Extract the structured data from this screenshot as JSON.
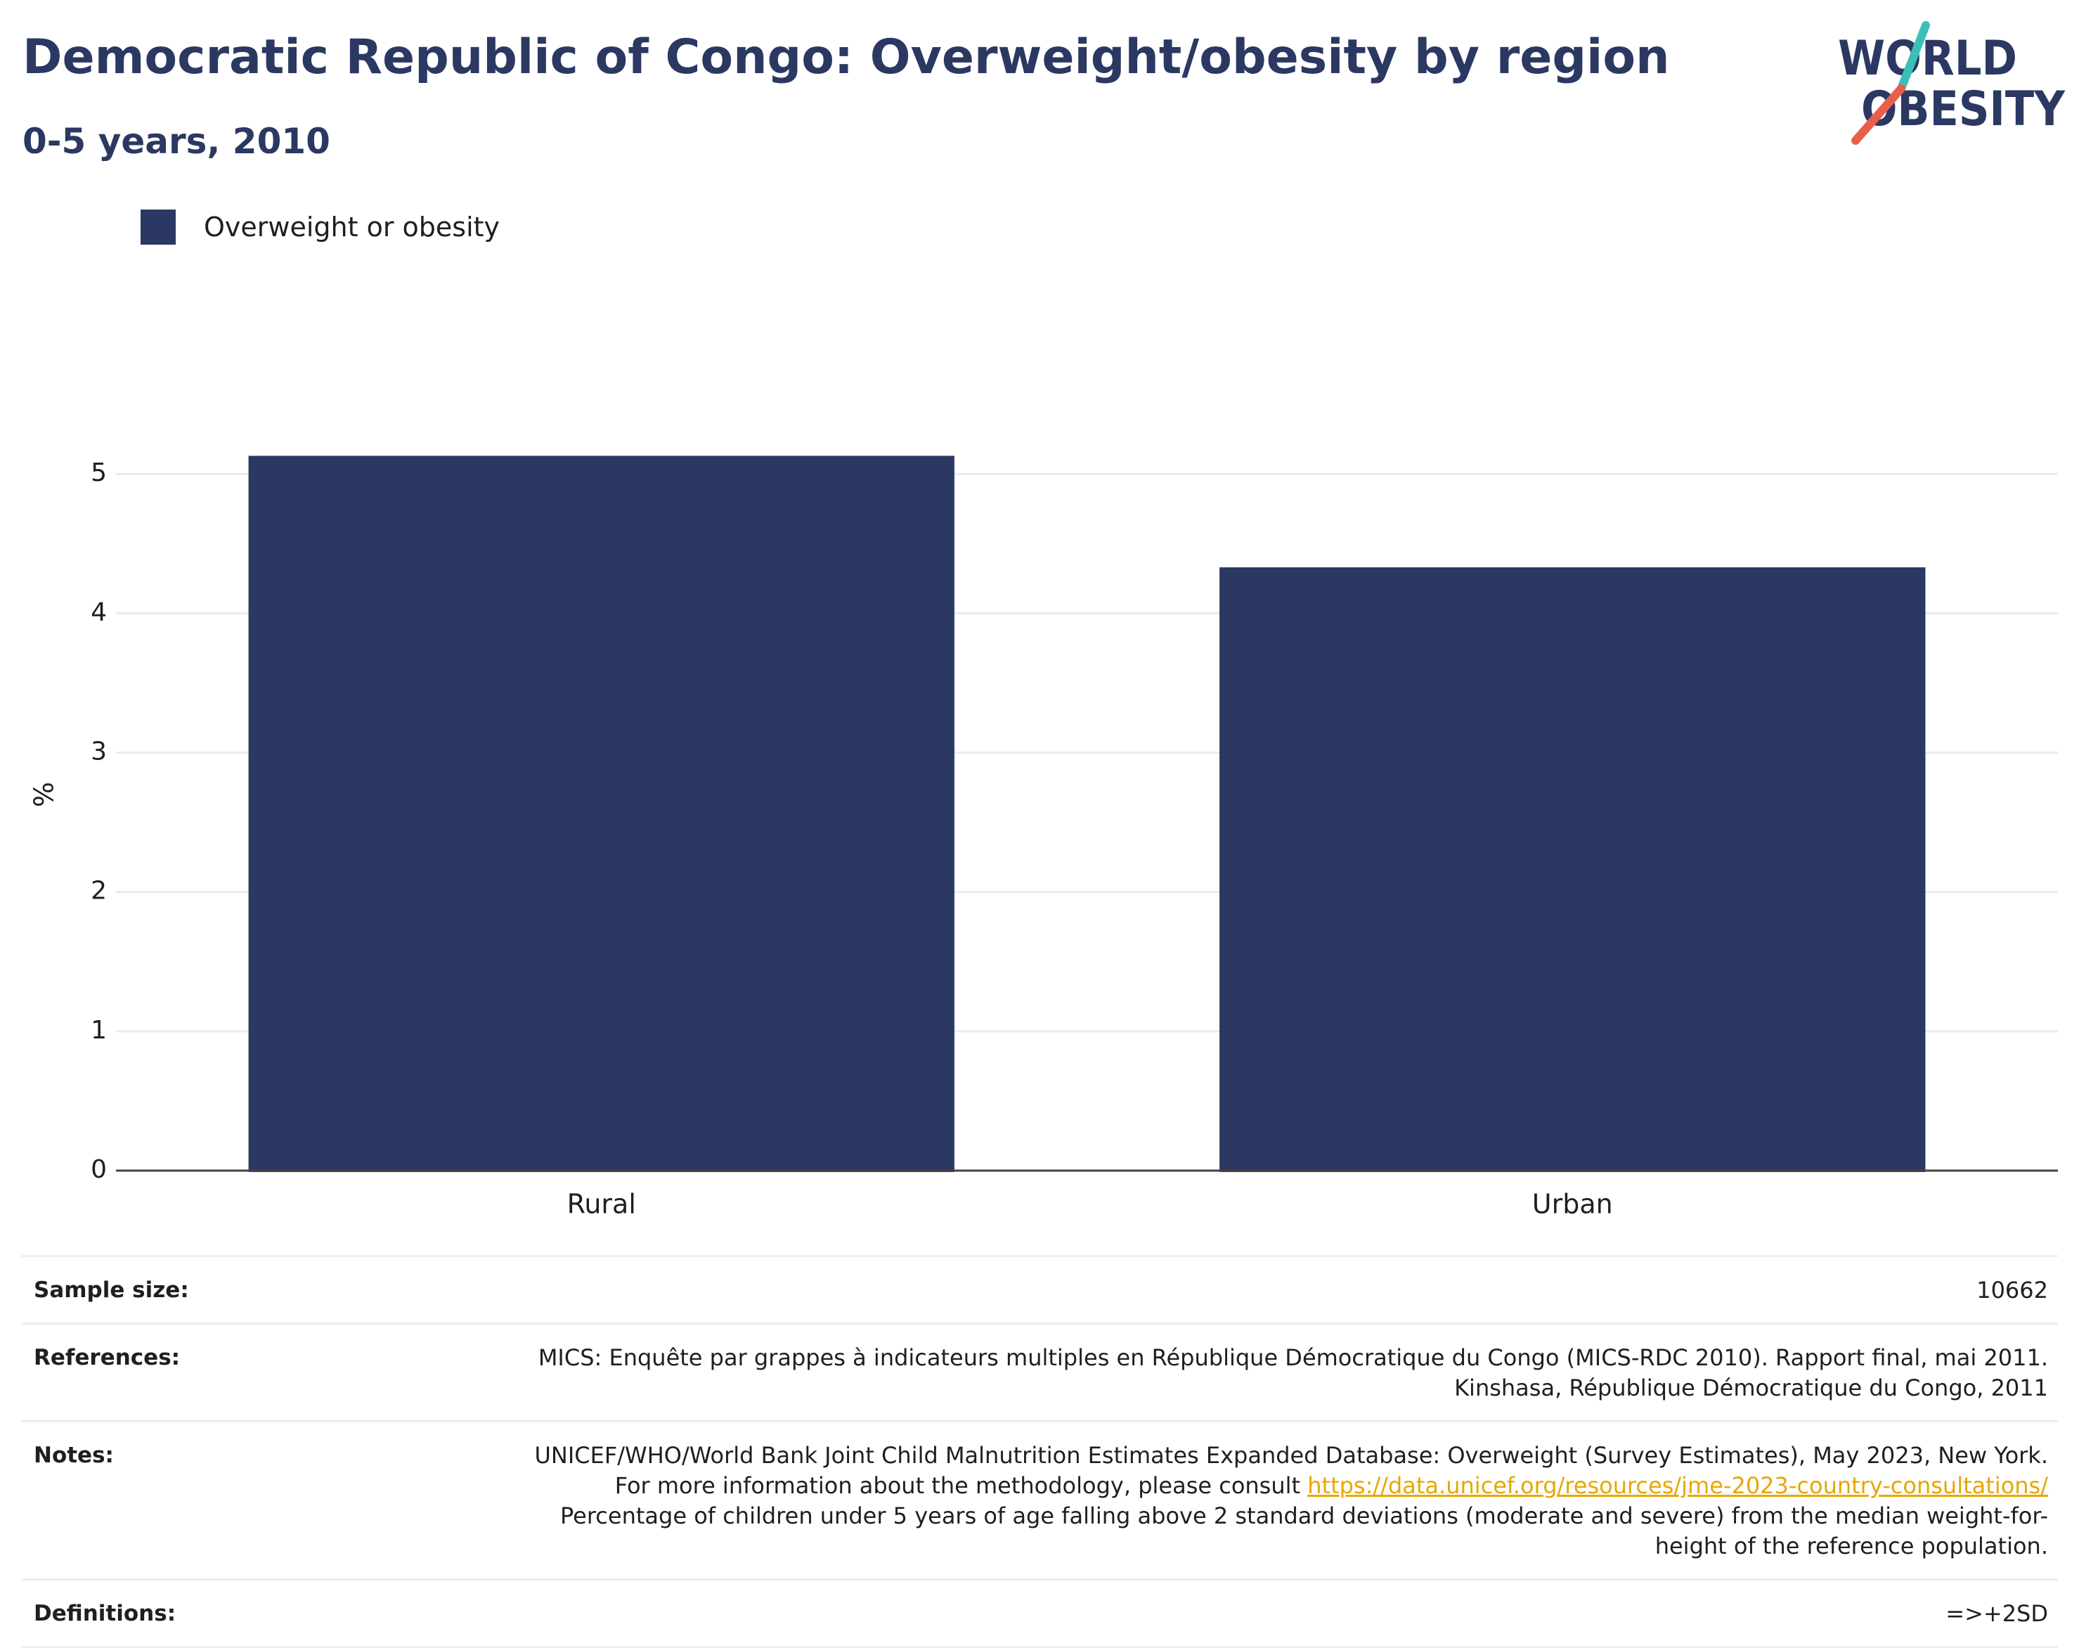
{
  "header": {
    "title": "Democratic Republic of Congo: Overweight/obesity by region",
    "subtitle": "0-5 years, 2010"
  },
  "logo": {
    "line1": "WORLD",
    "line2": "OBESITY",
    "accent_teal": "#3cbfb8",
    "accent_coral": "#e8604c",
    "color": "#2b3862"
  },
  "chart_data": {
    "type": "bar",
    "categories": [
      "Rural",
      "Urban"
    ],
    "series": [
      {
        "name": "Overweight or obesity",
        "values": [
          5.13,
          4.33
        ],
        "color": "#2b3862"
      }
    ],
    "title": "Democratic Republic of Congo: Overweight/obesity by region",
    "subtitle": "0-5 years, 2010",
    "xlabel": "",
    "ylabel": "%",
    "ylim": [
      0,
      5.5
    ],
    "yticks": [
      0,
      1,
      2,
      3,
      4,
      5
    ],
    "grid": true,
    "legend": "top-left"
  },
  "info": {
    "sample_size": {
      "label": "Sample size:",
      "value": "10662"
    },
    "references": {
      "label": "References:",
      "value": "MICS: Enquête par grappes à indicateurs multiples en République Démocratique du Congo (MICS-RDC 2010). Rapport final, mai 2011. Kinshasa, République Démocratique du Congo, 2011"
    },
    "notes": {
      "label": "Notes:",
      "text_before": "UNICEF/WHO/World Bank Joint Child Malnutrition Estimates Expanded Database: Overweight (Survey Estimates), May 2023, New York. For more information about the methodology, please consult ",
      "link": "https://data.unicef.org/resources/jme-2023-country-consultations/",
      "text_after": " Percentage of children under 5 years of age falling above 2 standard deviations (moderate and severe) from the median weight-for-height of the reference population."
    },
    "definitions": {
      "label": "Definitions:",
      "value": "=>+2SD"
    }
  }
}
